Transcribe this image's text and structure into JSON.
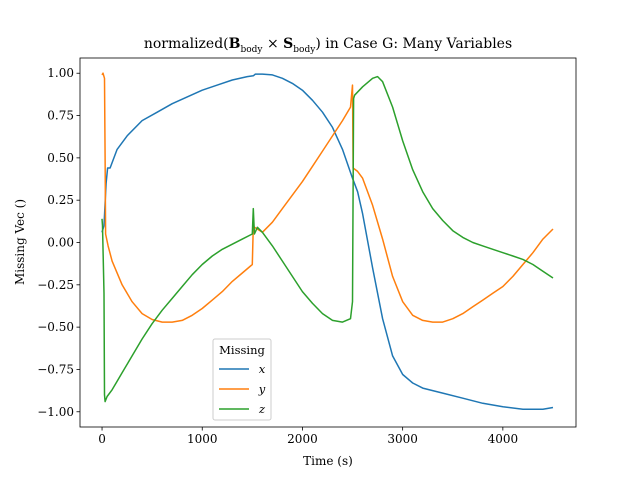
{
  "chart_data": {
    "type": "line",
    "title_parts": {
      "prefix": "normalized(",
      "b": "B",
      "b_sub": "body",
      "times": " × ",
      "s": "S",
      "s_sub": "body",
      "suffix": ") in Case G: Many Variables"
    },
    "xlabel": "Time (s)",
    "ylabel": "Missing Vec ()",
    "xlim": [
      -220,
      4730
    ],
    "ylim": [
      -1.09,
      1.09
    ],
    "xticks": [
      0,
      1000,
      2000,
      3000,
      4000
    ],
    "xtick_labels": [
      "0",
      "1000",
      "2000",
      "3000",
      "4000"
    ],
    "yticks": [
      1.0,
      0.75,
      0.5,
      0.25,
      0.0,
      -0.25,
      -0.5,
      -0.75,
      -1.0
    ],
    "ytick_labels": [
      "1.00",
      "0.75",
      "0.50",
      "0.25",
      "0.00",
      "−0.25",
      "−0.50",
      "−0.75",
      "−1.00"
    ],
    "grid": false,
    "legend": {
      "title": "Missing",
      "position": "lower-center"
    },
    "series": [
      {
        "name": "x",
        "color": "#1f77b4",
        "points": [
          [
            0,
            0.06
          ],
          [
            20,
            0.1
          ],
          [
            40,
            0.35
          ],
          [
            55,
            0.44
          ],
          [
            80,
            0.44
          ],
          [
            150,
            0.55
          ],
          [
            250,
            0.63
          ],
          [
            400,
            0.72
          ],
          [
            550,
            0.77
          ],
          [
            700,
            0.82
          ],
          [
            850,
            0.86
          ],
          [
            1000,
            0.9
          ],
          [
            1150,
            0.93
          ],
          [
            1300,
            0.96
          ],
          [
            1450,
            0.98
          ],
          [
            1510,
            0.985
          ],
          [
            1530,
            0.995
          ],
          [
            1600,
            0.995
          ],
          [
            1700,
            0.99
          ],
          [
            1800,
            0.97
          ],
          [
            1900,
            0.94
          ],
          [
            2000,
            0.9
          ],
          [
            2100,
            0.84
          ],
          [
            2200,
            0.77
          ],
          [
            2300,
            0.68
          ],
          [
            2400,
            0.55
          ],
          [
            2500,
            0.38
          ],
          [
            2550,
            0.3
          ],
          [
            2600,
            0.17
          ],
          [
            2700,
            -0.15
          ],
          [
            2800,
            -0.45
          ],
          [
            2900,
            -0.67
          ],
          [
            3000,
            -0.78
          ],
          [
            3100,
            -0.83
          ],
          [
            3200,
            -0.86
          ],
          [
            3400,
            -0.89
          ],
          [
            3600,
            -0.92
          ],
          [
            3800,
            -0.95
          ],
          [
            4000,
            -0.97
          ],
          [
            4200,
            -0.985
          ],
          [
            4400,
            -0.985
          ],
          [
            4500,
            -0.975
          ]
        ]
      },
      {
        "name": "y",
        "color": "#ff7f0e",
        "points": [
          [
            0,
            0.99
          ],
          [
            10,
            1.0
          ],
          [
            25,
            0.97
          ],
          [
            30,
            0.5
          ],
          [
            35,
            0.05
          ],
          [
            60,
            -0.02
          ],
          [
            100,
            -0.11
          ],
          [
            200,
            -0.25
          ],
          [
            300,
            -0.35
          ],
          [
            400,
            -0.42
          ],
          [
            500,
            -0.455
          ],
          [
            600,
            -0.47
          ],
          [
            700,
            -0.47
          ],
          [
            800,
            -0.46
          ],
          [
            900,
            -0.43
          ],
          [
            1000,
            -0.39
          ],
          [
            1100,
            -0.34
          ],
          [
            1200,
            -0.29
          ],
          [
            1300,
            -0.23
          ],
          [
            1400,
            -0.18
          ],
          [
            1500,
            -0.13
          ],
          [
            1510,
            0.1
          ],
          [
            1520,
            0.09
          ],
          [
            1600,
            0.06
          ],
          [
            1700,
            0.12
          ],
          [
            1800,
            0.2
          ],
          [
            1900,
            0.28
          ],
          [
            2000,
            0.36
          ],
          [
            2100,
            0.45
          ],
          [
            2200,
            0.54
          ],
          [
            2300,
            0.63
          ],
          [
            2400,
            0.72
          ],
          [
            2480,
            0.8
          ],
          [
            2500,
            0.93
          ],
          [
            2505,
            0.44
          ],
          [
            2550,
            0.42
          ],
          [
            2600,
            0.38
          ],
          [
            2700,
            0.22
          ],
          [
            2800,
            0.02
          ],
          [
            2900,
            -0.2
          ],
          [
            3000,
            -0.35
          ],
          [
            3100,
            -0.43
          ],
          [
            3200,
            -0.46
          ],
          [
            3300,
            -0.47
          ],
          [
            3400,
            -0.47
          ],
          [
            3500,
            -0.45
          ],
          [
            3600,
            -0.42
          ],
          [
            3700,
            -0.38
          ],
          [
            3800,
            -0.34
          ],
          [
            3900,
            -0.3
          ],
          [
            4000,
            -0.26
          ],
          [
            4100,
            -0.2
          ],
          [
            4200,
            -0.13
          ],
          [
            4300,
            -0.06
          ],
          [
            4400,
            0.02
          ],
          [
            4500,
            0.08
          ]
        ]
      },
      {
        "name": "z",
        "color": "#2ca02c",
        "points": [
          [
            0,
            0.14
          ],
          [
            5,
            0.1
          ],
          [
            20,
            -0.3
          ],
          [
            25,
            -0.9
          ],
          [
            30,
            -0.94
          ],
          [
            50,
            -0.91
          ],
          [
            100,
            -0.87
          ],
          [
            200,
            -0.77
          ],
          [
            300,
            -0.67
          ],
          [
            400,
            -0.57
          ],
          [
            500,
            -0.48
          ],
          [
            600,
            -0.4
          ],
          [
            700,
            -0.33
          ],
          [
            800,
            -0.26
          ],
          [
            900,
            -0.19
          ],
          [
            1000,
            -0.13
          ],
          [
            1100,
            -0.08
          ],
          [
            1200,
            -0.04
          ],
          [
            1300,
            -0.01
          ],
          [
            1400,
            0.02
          ],
          [
            1500,
            0.05
          ],
          [
            1510,
            0.2
          ],
          [
            1520,
            0.05
          ],
          [
            1550,
            0.09
          ],
          [
            1600,
            0.06
          ],
          [
            1700,
            -0.02
          ],
          [
            1800,
            -0.11
          ],
          [
            1900,
            -0.2
          ],
          [
            2000,
            -0.29
          ],
          [
            2100,
            -0.36
          ],
          [
            2200,
            -0.42
          ],
          [
            2300,
            -0.46
          ],
          [
            2400,
            -0.47
          ],
          [
            2480,
            -0.45
          ],
          [
            2500,
            -0.35
          ],
          [
            2510,
            0.85
          ],
          [
            2520,
            0.87
          ],
          [
            2600,
            0.92
          ],
          [
            2700,
            0.97
          ],
          [
            2750,
            0.98
          ],
          [
            2800,
            0.95
          ],
          [
            2900,
            0.8
          ],
          [
            3000,
            0.6
          ],
          [
            3100,
            0.43
          ],
          [
            3200,
            0.3
          ],
          [
            3300,
            0.2
          ],
          [
            3400,
            0.13
          ],
          [
            3500,
            0.07
          ],
          [
            3600,
            0.03
          ],
          [
            3700,
            0.0
          ],
          [
            3800,
            -0.02
          ],
          [
            3900,
            -0.04
          ],
          [
            4000,
            -0.06
          ],
          [
            4100,
            -0.08
          ],
          [
            4200,
            -0.1
          ],
          [
            4300,
            -0.13
          ],
          [
            4400,
            -0.17
          ],
          [
            4500,
            -0.21
          ]
        ]
      }
    ]
  }
}
